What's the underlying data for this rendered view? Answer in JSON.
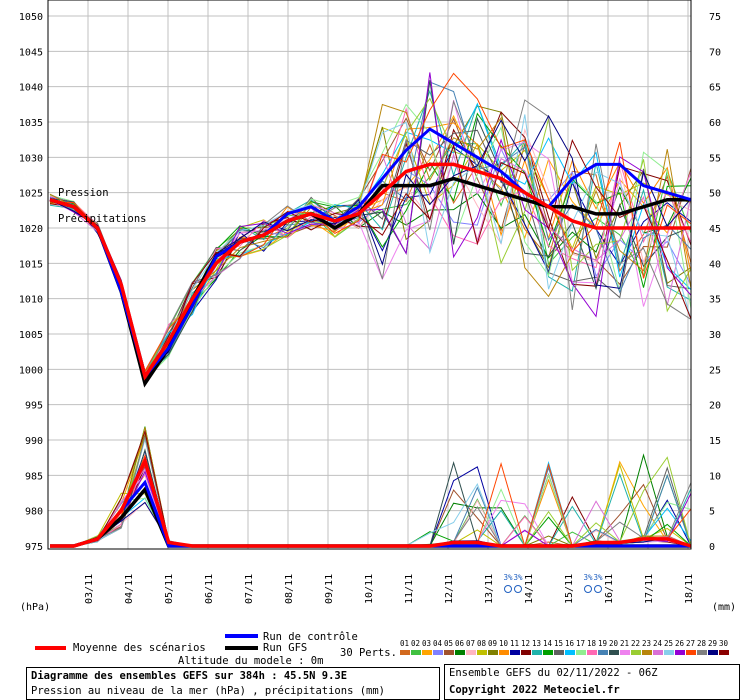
{
  "chart_data": {
    "type": "line",
    "left_axis_label": "(hPa)",
    "right_axis_label": "(mm)",
    "left_ticks": [
      975,
      980,
      985,
      990,
      995,
      1000,
      1005,
      1010,
      1015,
      1020,
      1025,
      1030,
      1035,
      1040,
      1045,
      1050
    ],
    "right_ticks": [
      0,
      5,
      10,
      15,
      20,
      25,
      30,
      35,
      40,
      45,
      50,
      55,
      60,
      65,
      70,
      75
    ],
    "dates": [
      "03/11",
      "04/11",
      "05/11",
      "06/11",
      "07/11",
      "08/11",
      "09/11",
      "10/11",
      "11/11",
      "12/11",
      "13/11",
      "14/11",
      "15/11",
      "16/11",
      "17/11",
      "18/11"
    ],
    "inline_labels": [
      "Pression",
      "Précipitations"
    ],
    "snow_marks": [
      {
        "date": "13/11",
        "pct1": "3%",
        "pct2": "3%"
      },
      {
        "date": "15/11",
        "pct1": "3%",
        "pct2": "3%"
      }
    ],
    "series": [
      {
        "name": "Moyenne des scénarios",
        "color": "#ff0000",
        "pressure": [
          1024,
          1023,
          1020,
          1012,
          999,
          1004,
          1010,
          1015,
          1018,
          1019,
          1021,
          1022,
          1021,
          1022,
          1025,
          1028,
          1029,
          1029,
          1028,
          1027,
          1025,
          1023,
          1021,
          1020,
          1020,
          1020,
          1020,
          1020
        ],
        "precip": [
          0,
          0,
          1,
          5,
          12,
          0.5,
          0,
          0,
          0,
          0,
          0,
          0,
          0,
          0,
          0,
          0,
          0,
          0.5,
          0.5,
          0,
          0,
          0,
          0,
          0.5,
          0.5,
          1,
          1,
          0
        ]
      },
      {
        "name": "Run de contrôle",
        "color": "#0000ff",
        "pressure": [
          1024,
          1023,
          1020,
          1011,
          999,
          1003,
          1009,
          1016,
          1018,
          1019,
          1022,
          1023,
          1021,
          1023,
          1027,
          1031,
          1034,
          1032,
          1030,
          1028,
          1025,
          1023,
          1027,
          1029,
          1029,
          1026,
          1025,
          1024
        ],
        "precip": [
          0,
          0,
          1,
          5,
          9,
          0,
          0,
          0,
          0,
          0,
          0,
          0,
          0,
          0,
          0,
          0,
          0,
          0,
          0,
          0,
          0,
          0,
          0,
          0,
          0,
          0,
          0,
          0
        ]
      },
      {
        "name": "Run GFS",
        "color": "#000000",
        "pressure": [
          1024,
          1023,
          1020,
          1011,
          998,
          1003,
          1010,
          1016,
          1018,
          1019,
          1021,
          1022,
          1020,
          1022,
          1026,
          1026,
          1026,
          1027,
          1026,
          1025,
          1024,
          1023,
          1023,
          1022,
          1022,
          1023,
          1024,
          1024
        ],
        "precip": [
          0,
          0,
          1,
          4,
          8,
          0,
          0,
          0,
          0,
          0,
          0,
          0,
          0,
          0,
          0,
          0,
          0,
          0,
          0,
          0,
          0,
          0,
          0,
          0,
          0,
          0,
          0,
          0
        ]
      }
    ],
    "perturbations_label": "30 Perts.",
    "perturbation_numbers": [
      "01",
      "02",
      "03",
      "04",
      "05",
      "06",
      "07",
      "08",
      "09",
      "10",
      "11",
      "12",
      "13",
      "14",
      "15",
      "16",
      "17",
      "18",
      "19",
      "20",
      "21",
      "22",
      "23",
      "24",
      "25",
      "26",
      "27",
      "28",
      "29",
      "30"
    ],
    "perturbation_colors": [
      "#d2691e",
      "#40c040",
      "#ffa500",
      "#8080ff",
      "#a0522d",
      "#008000",
      "#ffb6c1",
      "#c0c000",
      "#808000",
      "#ff8c00",
      "#0000a0",
      "#800000",
      "#20b2aa",
      "#00a000",
      "#606060",
      "#00bfff",
      "#90ee90",
      "#ff69b4",
      "#4682b4",
      "#2f4f4f",
      "#ee82ee",
      "#9acd32",
      "#b8860b",
      "#da70d6",
      "#87ceeb",
      "#9400d3",
      "#ff4500",
      "#808080",
      "#000080",
      "#8b0000"
    ]
  },
  "footer": {
    "altitude": "Altitude du modele : 0m",
    "title": "Diagramme des ensembles GEFS sur 384h : 45.5N 9.3E",
    "subtitle": "Pression au niveau de la mer (hPa) , précipitations (mm)",
    "run_info": "Ensemble GEFS du 02/11/2022 - 06Z",
    "copyright": "Copyright 2022 Meteociel.fr"
  }
}
